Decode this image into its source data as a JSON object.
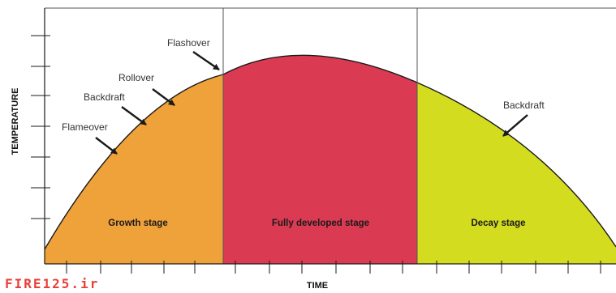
{
  "axes": {
    "x_label": "TIME",
    "y_label": "TEMPERATURE"
  },
  "stages": [
    {
      "label": "Growth stage",
      "color": "#f0a23a"
    },
    {
      "label": "Fully developed stage",
      "color": "#da3a52"
    },
    {
      "label": "Decay stage",
      "color": "#d4dc20"
    }
  ],
  "annotations": {
    "flameover": "Flameover",
    "backdraft_growth": "Backdraft",
    "rollover": "Rollover",
    "flashover": "Flashover",
    "backdraft_decay": "Backdraft"
  },
  "watermark": "FIRE125.ir"
}
